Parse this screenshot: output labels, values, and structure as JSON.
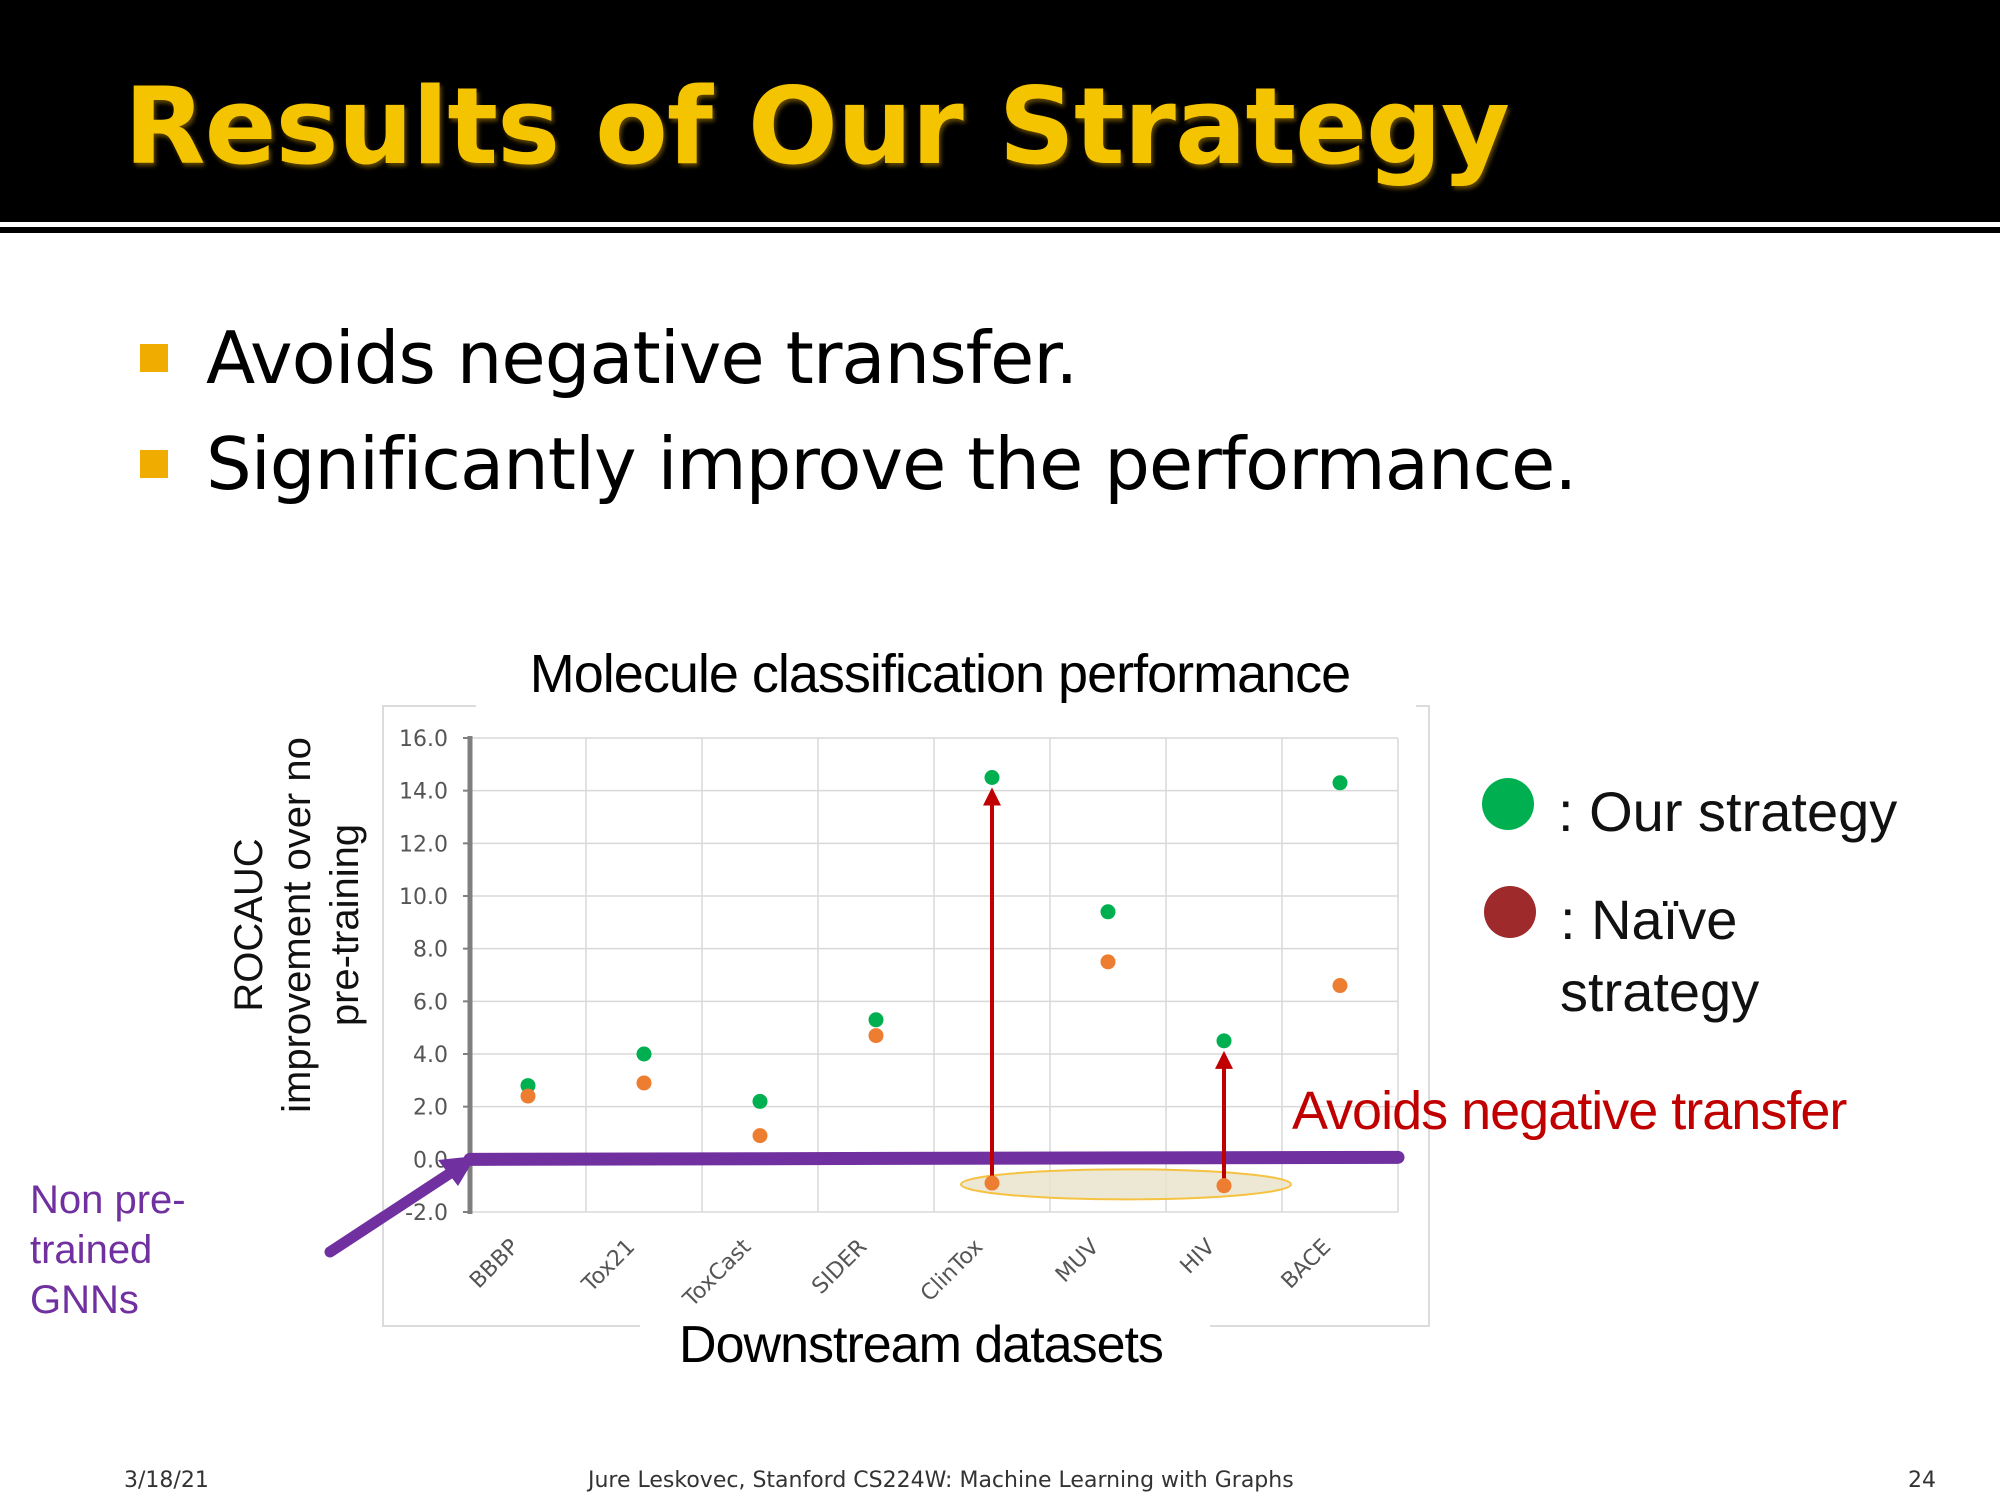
{
  "slide": {
    "title": "Results of Our Strategy",
    "bullets": [
      "Avoids negative transfer.",
      "Significantly improve the performance."
    ],
    "footer": {
      "date": "3/18/21",
      "credit": "Jure Leskovec, Stanford CS224W: Machine Learning with Graphs",
      "page": "24"
    },
    "annotations": {
      "red": "Avoids negative transfer",
      "purple": "Non pre-trained GNNs"
    },
    "colors": {
      "header_bg": "#000000",
      "title": "#f5c400",
      "bullet": "#f0ad00",
      "arrow_red": "#c00000",
      "baseline_purple": "#7030a0"
    }
  },
  "chart_data": {
    "type": "scatter",
    "title": "Molecule classification performance",
    "xlabel": "Downstream datasets",
    "ylabel": "ROCAUC improvement over no pre-training",
    "categories": [
      "BBBP",
      "Tox21",
      "ToxCast",
      "SIDER",
      "ClinTox",
      "MUV",
      "HIV",
      "BACE"
    ],
    "yticks": [
      "16.0",
      "14.0",
      "12.0",
      "10.0",
      "8.0",
      "6.0",
      "4.0",
      "2.0",
      "0.0",
      "-2.0"
    ],
    "ylim": [
      -2,
      16
    ],
    "grid": true,
    "legend_position": "right",
    "series": [
      {
        "name": ": Our strategy",
        "legend_label": ": Our strategy",
        "color": "#00b050",
        "legend_color": "#00b050",
        "values": [
          2.8,
          4.0,
          2.2,
          5.3,
          14.5,
          9.4,
          4.5,
          14.3
        ]
      },
      {
        "name": ": Naïve strategy",
        "legend_label": ": Naïve strategy",
        "color": "#ed7d31",
        "legend_color": "#9e2a2b",
        "values": [
          2.4,
          2.9,
          0.9,
          4.7,
          -0.9,
          7.5,
          -1.0,
          6.6
        ]
      }
    ]
  }
}
